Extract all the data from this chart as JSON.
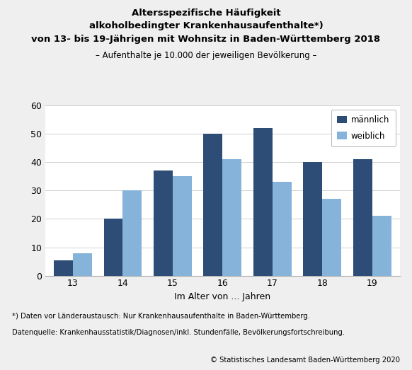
{
  "ages": [
    13,
    14,
    15,
    16,
    17,
    18,
    19
  ],
  "maennlich": [
    5.5,
    20,
    37,
    50,
    52,
    40,
    41
  ],
  "weiblich": [
    8.0,
    30,
    35,
    41,
    33,
    27,
    21
  ],
  "color_maennlich": "#2d4d76",
  "color_weiblich": "#85b3d9",
  "ylim": [
    0,
    60
  ],
  "yticks": [
    0,
    10,
    20,
    30,
    40,
    50,
    60
  ],
  "xlabel": "Im Alter von ... Jahren",
  "title_line1": "Altersspezifische Häufigkeit",
  "title_line2": "alkoholbedingter Krankenhausaufenthalte*)",
  "title_line3": "von 13- bis 19-Jährigen mit Wohnsitz in Baden-Württemberg 2018",
  "subtitle": "– Aufenthalte je 10.000 der jeweiligen Bevölkerung –",
  "legend_maennlich": "männlich",
  "legend_weiblich": "weiblich",
  "footnote1": "*) Daten vor Länderaustausch: Nur Krankenhausaufenthalte in Baden-Württemberg.",
  "footnote2": "Datenquelle: Krankenhausstatistik/Diagnosen/inkl. Stundenfälle, Bevölkerungsfortschreibung.",
  "copyright": "© Statistisches Landesamt Baden-Württemberg 2020",
  "bg_color": "#efefef",
  "plot_bg_color": "#ffffff",
  "grid_color": "#d0d0d0"
}
